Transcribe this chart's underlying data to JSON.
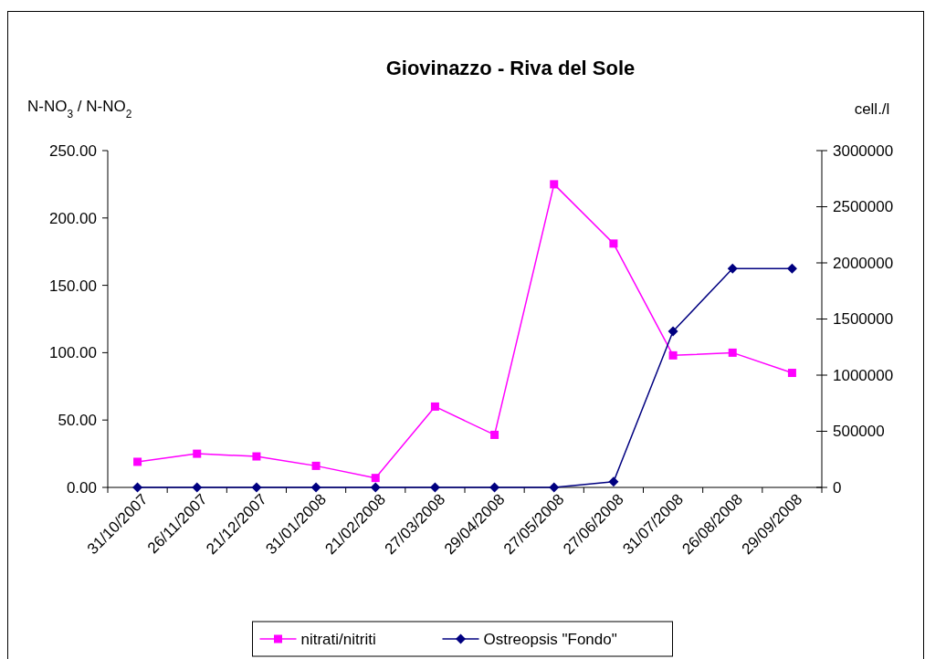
{
  "chart_data": {
    "type": "line",
    "title": "Giovinazzo - Riva del Sole",
    "ylabel": "N-NO$_{3}$ / N-NO$_{2}$",
    "y2label": "cell./l",
    "categories": [
      "31/10/2007",
      "26/11/2007",
      "21/12/2007",
      "31/01/2008",
      "21/02/2008",
      "27/03/2008",
      "29/04/2008",
      "27/05/2008",
      "27/06/2008",
      "31/07/2008",
      "26/08/2008",
      "29/09/2008"
    ],
    "series": [
      {
        "name": "nitrati/nitriti",
        "color": "#ff00ff",
        "marker": "square",
        "values": [
          19,
          25,
          23,
          16,
          7,
          60,
          39,
          225,
          181,
          98,
          100,
          85
        ]
      },
      {
        "name": "Ostreopsis \"Fondo\"",
        "color": "#000080",
        "marker": "diamond",
        "axis": "y2",
        "values": [
          0,
          0,
          0,
          0,
          0,
          0,
          0,
          0,
          50000,
          1390000,
          1950000,
          1950000
        ]
      }
    ],
    "ylim": [
      0,
      250
    ],
    "yticks": [
      {
        "value": 0,
        "label": "0.00"
      },
      {
        "value": 50,
        "label": "50.00"
      },
      {
        "value": 100,
        "label": "100.00"
      },
      {
        "value": 150,
        "label": "150.00"
      },
      {
        "value": 200,
        "label": "200.00"
      },
      {
        "value": 250,
        "label": "250.00"
      }
    ],
    "y2lim": [
      0,
      3000000
    ],
    "y2ticks": [
      0,
      500000,
      1000000,
      1500000,
      2000000,
      2500000,
      3000000
    ],
    "grid": false,
    "legend": "bottom",
    "line_style": "solid"
  }
}
